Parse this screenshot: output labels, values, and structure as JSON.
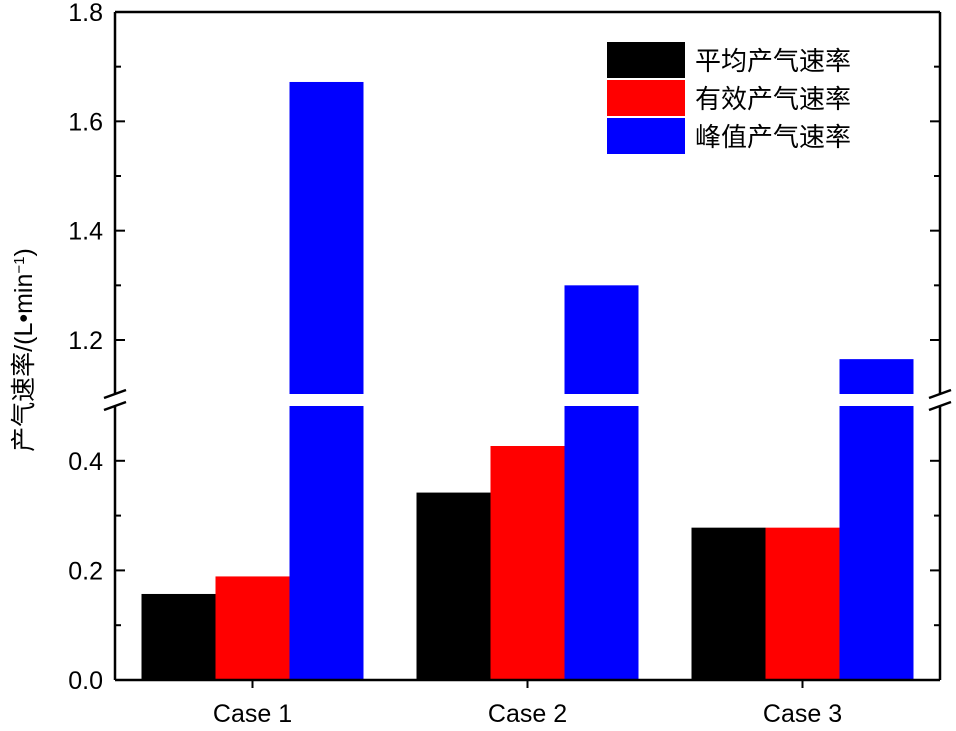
{
  "chart_data": {
    "type": "bar",
    "categories": [
      "Case 1",
      "Case 2",
      "Case 3"
    ],
    "series": [
      {
        "name": "平均产气速率",
        "color": "#000000",
        "values": [
          0.157,
          0.342,
          0.278
        ]
      },
      {
        "name": "有效产气速率",
        "color": "#ff0000",
        "values": [
          0.189,
          0.427,
          0.278
        ]
      },
      {
        "name": "峰值产气速率",
        "color": "#0000ff",
        "values": [
          1.672,
          1.3,
          1.165
        ]
      }
    ],
    "ylabel_main": "产气速率/",
    "ylabel_units": "(L•min",
    "ylabel_exp": "−1",
    "ylabel_close": ")",
    "axis_break": true,
    "lower_range": [
      0.0,
      0.5
    ],
    "upper_range": [
      1.1,
      1.8
    ],
    "lower_ticks": [
      "0.0",
      "0.2",
      "0.4"
    ],
    "upper_ticks": [
      "1.2",
      "1.4",
      "1.6",
      "1.8"
    ],
    "legend_position": "top-right",
    "grid": false
  }
}
